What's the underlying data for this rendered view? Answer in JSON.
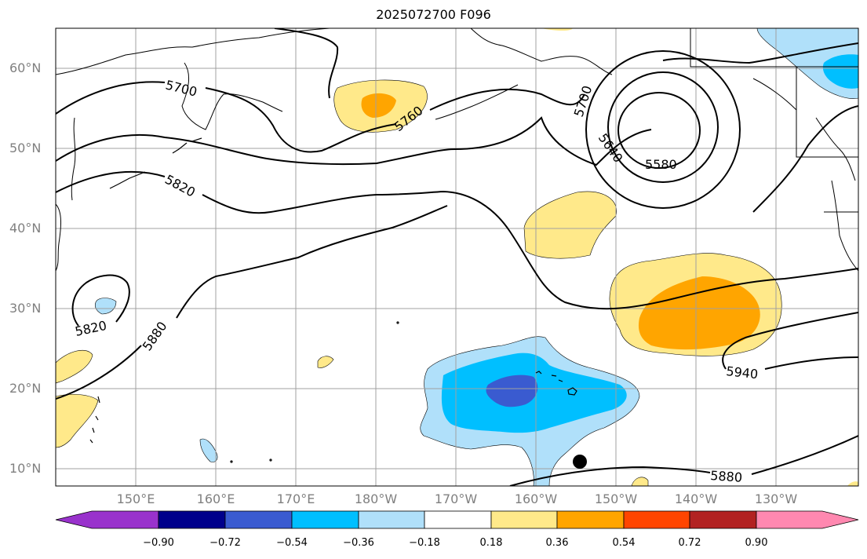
{
  "title": "2025072700 F096",
  "lat_labels": [
    "60°N",
    "50°N",
    "40°N",
    "30°N",
    "20°N",
    "10°N"
  ],
  "lon_labels": [
    "150°E",
    "160°E",
    "170°E",
    "180°W",
    "170°W",
    "160°W",
    "150°W",
    "140°W",
    "130°W"
  ],
  "contour_labels": [
    "5700",
    "5760",
    "5700",
    "5640",
    "5580",
    "5820",
    "5820",
    "5880",
    "5940",
    "5880"
  ],
  "colorbar": {
    "ticks": [
      "−0.90",
      "−0.72",
      "−0.54",
      "−0.36",
      "−0.18",
      "0.18",
      "0.36",
      "0.54",
      "0.72",
      "0.90"
    ],
    "colors": [
      "#9932cc",
      "#00008b",
      "#3a5bd0",
      "#00bfff",
      "#b0e0fa",
      "#ffffff",
      "#ffe98a",
      "#ffa500",
      "#ff4500",
      "#b22222",
      "#ff88b0"
    ]
  },
  "marker": "storm-position-dot"
}
